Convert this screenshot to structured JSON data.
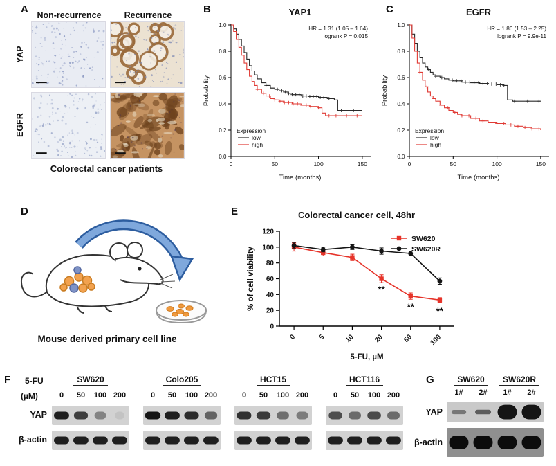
{
  "panels": {
    "a": {
      "label": "A",
      "col_headers": [
        "Non-recurrence",
        "Recurrence"
      ],
      "row_labels": [
        "YAP",
        "EGFR"
      ],
      "caption": "Colorectal cancer patients",
      "images": [
        {
          "name": "yap-non-recurrence",
          "style": "sparse-nuclei",
          "bg": "#e9ecf3",
          "nucleus": "#8795c0",
          "seed": 11
        },
        {
          "name": "yap-recurrence",
          "style": "glands",
          "bg": "#ece2d2",
          "stain": "#9a6a3a",
          "nucleus": "#7c88b4",
          "seed": 22
        },
        {
          "name": "egfr-non-recurrence",
          "style": "sparse-nuclei",
          "bg": "#edf0f5",
          "nucleus": "#94a1c6",
          "seed": 33
        },
        {
          "name": "egfr-recurrence",
          "style": "dense-stain",
          "bg": "#c59362",
          "stain": "#6e431e",
          "nucleus": "#53628f",
          "seed": 44
        }
      ]
    },
    "b": {
      "label": "B"
    },
    "c": {
      "label": "C"
    },
    "d": {
      "label": "D",
      "caption": "Mouse derived primary cell line"
    },
    "e": {
      "label": "E"
    },
    "f": {
      "label": "F",
      "header_left": "5-FU",
      "unit": "(µM)",
      "doses": [
        "0",
        "50",
        "100",
        "200"
      ],
      "yap_label": "YAP",
      "actin_label": "β-actin",
      "groups": [
        {
          "name": "SW620",
          "yap_bands": [
            0.95,
            0.78,
            0.42,
            0.08
          ]
        },
        {
          "name": "Colo205",
          "yap_bands": [
            1.0,
            0.95,
            0.88,
            0.58
          ]
        },
        {
          "name": "HCT15",
          "yap_bands": [
            0.85,
            0.8,
            0.52,
            0.45
          ]
        },
        {
          "name": "HCT116",
          "yap_bands": [
            0.7,
            0.55,
            0.72,
            0.55
          ]
        }
      ],
      "actin_bands": [
        0.95,
        0.95,
        0.95,
        0.95
      ]
    },
    "g": {
      "label": "G",
      "group_headers": [
        "SW620",
        "SW620R"
      ],
      "lane_labels": [
        "1#",
        "2#",
        "1#",
        "2#"
      ],
      "yap_label": "YAP",
      "actin_label": "β-actin",
      "yap_bands": [
        0.45,
        0.6,
        1.0,
        1.0
      ],
      "yap_weights": [
        0.55,
        0.6,
        1.9,
        1.9
      ],
      "actin_bands": [
        1,
        1,
        1,
        1
      ]
    }
  },
  "chart_data": [
    {
      "id": "km-yap1",
      "type": "line",
      "subtype": "kaplan-meier",
      "title": "YAP1",
      "xlabel": "Time (months)",
      "ylabel": "Probability",
      "xticks": [
        0,
        50,
        100,
        150
      ],
      "yticks": [
        0,
        0.2,
        0.4,
        0.6,
        0.8,
        1
      ],
      "xmax": 158,
      "ylim": [
        0,
        1
      ],
      "annotation_lines": [
        "HR = 1.31 (1.05 – 1.64)",
        "logrank P = 0.015"
      ],
      "legend_title": "Expression",
      "legend_pos": "bottom-left",
      "series": [
        {
          "name": "low",
          "color": "#2b2b2b",
          "points": [
            [
              0,
              1
            ],
            [
              3,
              0.97
            ],
            [
              6,
              0.93
            ],
            [
              9,
              0.89
            ],
            [
              12,
              0.84
            ],
            [
              15,
              0.79
            ],
            [
              18,
              0.74
            ],
            [
              21,
              0.69
            ],
            [
              24,
              0.65
            ],
            [
              27,
              0.62
            ],
            [
              30,
              0.59
            ],
            [
              35,
              0.56
            ],
            [
              40,
              0.54
            ],
            [
              45,
              0.52
            ],
            [
              50,
              0.51
            ],
            [
              55,
              0.5
            ],
            [
              60,
              0.49
            ],
            [
              65,
              0.48
            ],
            [
              70,
              0.47
            ],
            [
              80,
              0.46
            ],
            [
              90,
              0.455
            ],
            [
              100,
              0.45
            ],
            [
              110,
              0.44
            ],
            [
              118,
              0.43
            ],
            [
              122,
              0.35
            ],
            [
              150,
              0.35
            ]
          ],
          "censor": [
            32,
            40,
            47,
            53,
            58,
            62,
            66,
            70,
            74,
            78,
            82,
            86,
            90,
            94,
            98,
            102,
            106,
            112,
            126,
            140
          ]
        },
        {
          "name": "high",
          "color": "#e03a34",
          "points": [
            [
              0,
              1
            ],
            [
              3,
              0.95
            ],
            [
              6,
              0.89
            ],
            [
              9,
              0.83
            ],
            [
              12,
              0.77
            ],
            [
              15,
              0.71
            ],
            [
              18,
              0.66
            ],
            [
              21,
              0.61
            ],
            [
              24,
              0.57
            ],
            [
              27,
              0.54
            ],
            [
              30,
              0.51
            ],
            [
              35,
              0.48
            ],
            [
              40,
              0.46
            ],
            [
              45,
              0.44
            ],
            [
              50,
              0.43
            ],
            [
              55,
              0.42
            ],
            [
              60,
              0.41
            ],
            [
              70,
              0.4
            ],
            [
              80,
              0.39
            ],
            [
              90,
              0.38
            ],
            [
              100,
              0.37
            ],
            [
              104,
              0.33
            ],
            [
              108,
              0.31
            ],
            [
              150,
              0.31
            ]
          ],
          "censor": [
            30,
            37,
            44,
            50,
            56,
            61,
            66,
            71,
            76,
            81,
            86,
            91,
            96,
            100,
            112,
            120,
            132,
            144
          ]
        }
      ]
    },
    {
      "id": "km-egfr",
      "type": "line",
      "subtype": "kaplan-meier",
      "title": "EGFR",
      "xlabel": "Time (months)",
      "ylabel": "Probability",
      "xticks": [
        0,
        50,
        100,
        150
      ],
      "yticks": [
        0,
        0.2,
        0.4,
        0.6,
        0.8,
        1
      ],
      "xmax": 158,
      "ylim": [
        0,
        1
      ],
      "annotation_lines": [
        "HR = 1.86 (1.53 – 2.25)",
        "logrank P = 9.9e-11"
      ],
      "legend_title": "Expression",
      "legend_pos": "bottom-left",
      "series": [
        {
          "name": "low",
          "color": "#2b2b2b",
          "points": [
            [
              0,
              1
            ],
            [
              3,
              0.93
            ],
            [
              6,
              0.86
            ],
            [
              9,
              0.8
            ],
            [
              12,
              0.75
            ],
            [
              15,
              0.71
            ],
            [
              18,
              0.68
            ],
            [
              21,
              0.66
            ],
            [
              24,
              0.64
            ],
            [
              27,
              0.62
            ],
            [
              30,
              0.61
            ],
            [
              35,
              0.6
            ],
            [
              40,
              0.59
            ],
            [
              45,
              0.58
            ],
            [
              50,
              0.575
            ],
            [
              60,
              0.565
            ],
            [
              70,
              0.56
            ],
            [
              80,
              0.555
            ],
            [
              90,
              0.55
            ],
            [
              100,
              0.545
            ],
            [
              108,
              0.54
            ],
            [
              112,
              0.43
            ],
            [
              118,
              0.42
            ],
            [
              150,
              0.42
            ]
          ],
          "censor": [
            22,
            30,
            37,
            43,
            49,
            54,
            59,
            64,
            69,
            74,
            79,
            84,
            89,
            94,
            99,
            104,
            108,
            120,
            135,
            148
          ]
        },
        {
          "name": "high",
          "color": "#e03a34",
          "points": [
            [
              0,
              1
            ],
            [
              3,
              0.9
            ],
            [
              6,
              0.8
            ],
            [
              9,
              0.71
            ],
            [
              12,
              0.64
            ],
            [
              15,
              0.58
            ],
            [
              18,
              0.53
            ],
            [
              21,
              0.49
            ],
            [
              24,
              0.46
            ],
            [
              27,
              0.44
            ],
            [
              30,
              0.42
            ],
            [
              35,
              0.39
            ],
            [
              40,
              0.37
            ],
            [
              45,
              0.35
            ],
            [
              50,
              0.335
            ],
            [
              55,
              0.32
            ],
            [
              60,
              0.31
            ],
            [
              70,
              0.29
            ],
            [
              80,
              0.27
            ],
            [
              90,
              0.26
            ],
            [
              100,
              0.25
            ],
            [
              110,
              0.24
            ],
            [
              120,
              0.23
            ],
            [
              130,
              0.22
            ],
            [
              140,
              0.21
            ],
            [
              150,
              0.2
            ]
          ],
          "censor": [
            12,
            20,
            28,
            36,
            44,
            52,
            60,
            68,
            76,
            84,
            92,
            100,
            108,
            116,
            124,
            132,
            140,
            148
          ]
        }
      ]
    },
    {
      "id": "cell-viability",
      "type": "line",
      "title": "Colorectal cancer cell, 48hr",
      "xlabel": "5-FU, µM",
      "ylabel": "% of cell viability",
      "categories": [
        "0",
        "5",
        "10",
        "20",
        "50",
        "100"
      ],
      "yticks": [
        0,
        20,
        40,
        60,
        80,
        100,
        120
      ],
      "ylim": [
        0,
        120
      ],
      "legend_pos": "top-right",
      "series": [
        {
          "name": "SW620",
          "color": "#e63329",
          "marker": "square",
          "values": [
            100,
            93,
            87,
            60,
            38,
            33
          ],
          "errors": [
            5,
            4,
            4,
            5,
            4,
            3
          ]
        },
        {
          "name": "SW620R",
          "color": "#141414",
          "marker": "circle",
          "values": [
            102,
            97,
            100,
            95,
            92,
            57
          ],
          "errors": [
            4,
            3,
            3,
            4,
            3,
            4
          ]
        }
      ],
      "significance": {
        "labels": [
          "**",
          "**",
          "**"
        ],
        "at_index": [
          3,
          4,
          5
        ]
      }
    }
  ]
}
